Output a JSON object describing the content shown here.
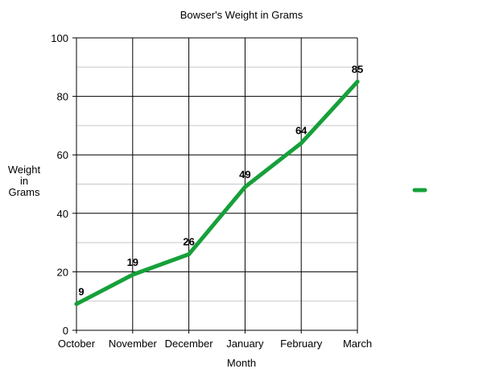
{
  "chart_data": {
    "type": "line",
    "title": "Bowser's Weight in Grams",
    "xlabel": "Month",
    "ylabel_lines": [
      "Weight",
      "in",
      "Grams"
    ],
    "categories": [
      "October",
      "November",
      "December",
      "January",
      "February",
      "March"
    ],
    "series": [
      {
        "values": [
          9,
          19,
          26,
          49,
          64,
          85
        ],
        "color": "#16a03a"
      }
    ],
    "data_labels": [
      "9",
      "19",
      "26",
      "49",
      "64",
      "85"
    ],
    "y_ticks": [
      0,
      20,
      40,
      60,
      80,
      100
    ],
    "ylim": [
      0,
      100
    ],
    "grid": true,
    "legend": "right"
  }
}
